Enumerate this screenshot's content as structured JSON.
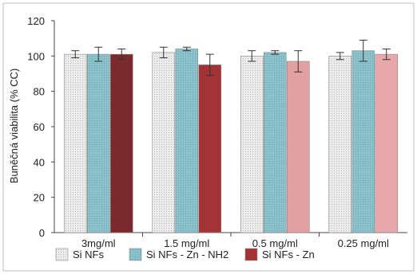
{
  "chart_data": {
    "type": "bar",
    "title": "",
    "ylabel": "Buněčná viabilita (% CC)",
    "xlabel": "",
    "ylim": [
      0,
      120
    ],
    "yticks": [
      0,
      20,
      40,
      60,
      80,
      100,
      120
    ],
    "grid": false,
    "legend_position": "bottom",
    "categories": [
      "3mg/ml",
      "1.5 mg/ml",
      "0.5 mg/ml",
      "0.25 mg/ml"
    ],
    "series": [
      {
        "name": "Si NFs",
        "values": [
          101,
          102,
          100,
          100
        ],
        "errors": [
          2,
          3,
          3,
          2
        ],
        "color": "#e6e6e6"
      },
      {
        "name": "Si NFs - Zn - NH2",
        "values": [
          101,
          104,
          102,
          103
        ],
        "errors": [
          4,
          1,
          1,
          6
        ],
        "color": "#8fc3cc"
      },
      {
        "name": "Si NFs - Zn",
        "values": [
          101,
          95,
          97,
          101
        ],
        "errors": [
          3,
          6,
          6,
          3
        ],
        "color_by_category": [
          "#7a2a2c",
          "#a33335",
          "#e3a0a2",
          "#e6a8aa"
        ]
      }
    ]
  }
}
